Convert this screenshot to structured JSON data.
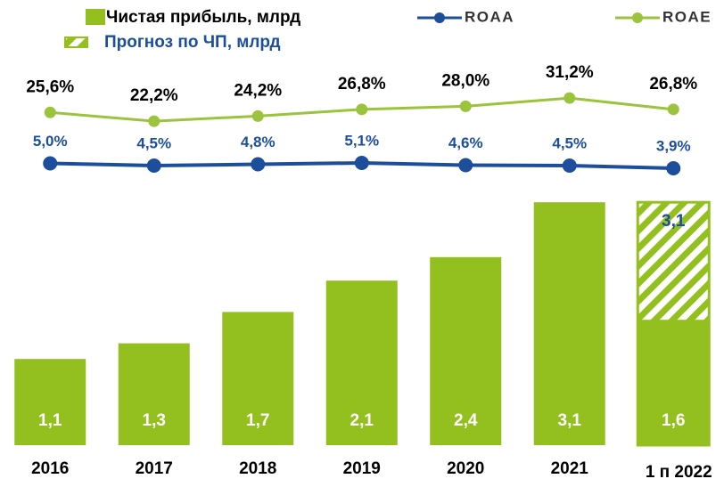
{
  "chart_data": {
    "type": "bar",
    "categories": [
      "2016",
      "2017",
      "2018",
      "2019",
      "2020",
      "2021",
      "1 п 2022"
    ],
    "ylim": [
      0,
      3.5
    ],
    "y2lim": [
      17.4,
      34.7
    ],
    "y3lim": [
      1.7,
      9.7
    ],
    "series": [
      {
        "name": "Чистая прибыль, млрд",
        "type": "bar",
        "color": "#93c01f",
        "values": [
          1.1,
          1.3,
          1.7,
          2.1,
          2.4,
          3.1,
          1.6
        ],
        "value_labels": [
          "1,1",
          "1,3",
          "1,7",
          "2,1",
          "2,4",
          "3,1",
          "1,6"
        ]
      },
      {
        "name": "Прогноз по ЧП, млрд",
        "type": "hatched-bar",
        "color": "#93c01f",
        "values": [
          null,
          null,
          null,
          null,
          null,
          null,
          3.1
        ],
        "value_labels": [
          null,
          null,
          null,
          null,
          null,
          null,
          "3,1"
        ]
      },
      {
        "name": "ROAA",
        "type": "line",
        "axis": "y3",
        "color": "#1c4e9c",
        "values": [
          5.0,
          4.5,
          4.8,
          5.1,
          4.6,
          4.5,
          3.9
        ],
        "value_labels": [
          "5,0%",
          "4,5%",
          "4,8%",
          "5,1%",
          "4,6%",
          "4,5%",
          "3,9%"
        ]
      },
      {
        "name": "ROAE",
        "type": "line",
        "axis": "y2",
        "color": "#9bc33c",
        "values": [
          25.6,
          22.2,
          24.2,
          26.8,
          28.0,
          31.2,
          26.8
        ],
        "value_labels": [
          "25,6%",
          "22,2%",
          "24,2%",
          "26,8%",
          "28,0%",
          "31,2%",
          "26,8%"
        ]
      }
    ]
  }
}
